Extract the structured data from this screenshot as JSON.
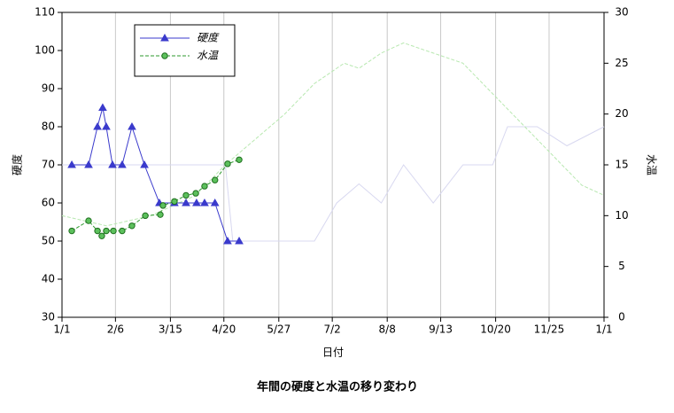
{
  "chart_data": {
    "type": "line",
    "title": "年間の硬度と水温の移り変わり",
    "x_label": "日付",
    "y_label": "硬度",
    "y2_label": "水温",
    "xlim": [
      0,
      365
    ],
    "xticks": [
      {
        "value": 0,
        "label": "1/1"
      },
      {
        "value": 36,
        "label": "2/6"
      },
      {
        "value": 73,
        "label": "3/15"
      },
      {
        "value": 109,
        "label": "4/20"
      },
      {
        "value": 146,
        "label": "5/27"
      },
      {
        "value": 182,
        "label": "7/2"
      },
      {
        "value": 219,
        "label": "8/8"
      },
      {
        "value": 255,
        "label": "9/13"
      },
      {
        "value": 292,
        "label": "10/20"
      },
      {
        "value": 328,
        "label": "11/25"
      },
      {
        "value": 365,
        "label": "1/1"
      }
    ],
    "ylim": [
      30,
      110
    ],
    "yticks": [
      30,
      40,
      50,
      60,
      70,
      80,
      90,
      100,
      110
    ],
    "y2lim": [
      0,
      30
    ],
    "y2ticks": [
      0,
      5,
      10,
      15,
      20,
      25,
      30
    ],
    "grid": "x",
    "series": [
      {
        "color": "#d8d8f0",
        "x": [
          0,
          110,
          115,
          170,
          185,
          200,
          215,
          230,
          250,
          270,
          290,
          300,
          320,
          340,
          365
        ],
        "values": [
          70,
          70,
          50,
          50,
          60,
          65,
          60,
          70,
          60,
          70,
          70,
          80,
          80,
          75,
          80
        ]
      },
      {
        "color": "#b8e8b0",
        "dash": true,
        "axis": "y2",
        "x": [
          0,
          30,
          60,
          90,
          110,
          130,
          150,
          170,
          190,
          200,
          215,
          230,
          250,
          270,
          290,
          310,
          330,
          350,
          365
        ],
        "values": [
          10,
          9,
          10,
          12,
          15,
          17.5,
          20,
          23,
          25,
          24.5,
          26,
          27,
          26,
          25,
          22,
          19,
          16,
          13,
          12
        ]
      },
      {
        "name": "硬度",
        "color": "#3a3acc",
        "marker": "triangle",
        "x": [
          6.6,
          17.9,
          23.9,
          27.4,
          29.8,
          34,
          40.5,
          47.1,
          55.5,
          65.6,
          75.7,
          83.5,
          90.6,
          96,
          103,
          111.5,
          119.3
        ],
        "values": [
          70,
          70,
          80,
          85,
          80,
          70,
          70,
          80,
          70,
          60,
          60,
          60,
          60,
          60,
          60,
          50,
          50
        ]
      },
      {
        "name": "水温",
        "color": "#2e9a2e",
        "marker": "circle",
        "dash": true,
        "axis": "y2",
        "x": [
          6.6,
          17.9,
          23.9,
          26.8,
          29.8,
          34.6,
          40.5,
          47.1,
          56.1,
          66.2,
          68,
          75.7,
          83.5,
          90.1,
          96,
          103,
          111.5,
          119.3
        ],
        "values": [
          8.5,
          9.5,
          8.5,
          8,
          8.5,
          8.5,
          8.5,
          9,
          10,
          10.1,
          11,
          11.4,
          12,
          12.2,
          12.9,
          13.5,
          15.1,
          15.5
        ]
      }
    ]
  }
}
